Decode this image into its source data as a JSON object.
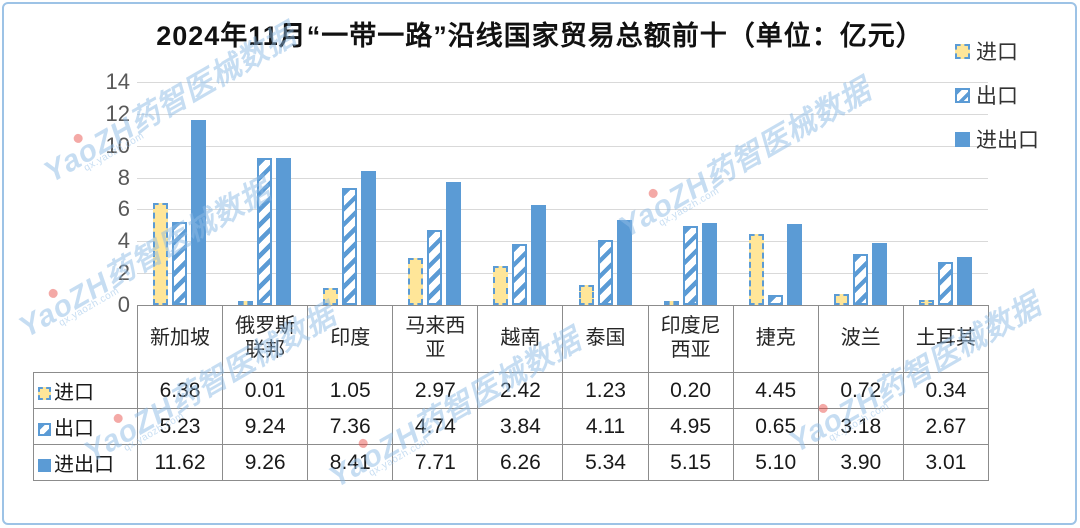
{
  "title": "2024年11月“一带一路”沿线国家贸易总额前十（单位：亿元）",
  "watermark": {
    "text": "YaoZH药智医械数据",
    "subtext": "qx.yaozh.com"
  },
  "legend": [
    {
      "id": "import",
      "label": "进口"
    },
    {
      "id": "export",
      "label": "出口"
    },
    {
      "id": "total",
      "label": "进出口"
    }
  ],
  "colors": {
    "accent_blue": "#5B9BD5",
    "import_yellow": "#FFE699",
    "grid": "#D9D9D9",
    "frame_border": "#9DC3E6",
    "axis_text": "#595959",
    "table_border": "#8C8C8C",
    "watermark_blue": "#8FBCE6",
    "watermark_dot_red": "#E8413C"
  },
  "chart_data": {
    "type": "bar",
    "title": "2024年11月“一带一路”沿线国家贸易总额前十（单位：亿元）",
    "unit": "亿元",
    "categories": [
      "新加坡",
      "俄罗斯联邦",
      "印度",
      "马来西亚",
      "越南",
      "泰国",
      "印度尼西亚",
      "捷克",
      "波兰",
      "土耳其"
    ],
    "series": [
      {
        "name": "进口",
        "values": [
          6.38,
          0.01,
          1.05,
          2.97,
          2.42,
          1.23,
          0.2,
          4.45,
          0.72,
          0.34
        ]
      },
      {
        "name": "出口",
        "values": [
          5.23,
          9.24,
          7.36,
          4.74,
          3.84,
          4.11,
          4.95,
          0.65,
          3.18,
          2.67
        ]
      },
      {
        "name": "进出口",
        "values": [
          11.62,
          9.26,
          8.41,
          7.71,
          6.26,
          5.34,
          5.15,
          5.1,
          3.9,
          3.01
        ]
      }
    ],
    "xlabel": "",
    "ylabel": "",
    "ylim": [
      0,
      14
    ],
    "yticks": [
      0,
      2,
      4,
      6,
      8,
      10,
      12,
      14
    ],
    "grid": true,
    "legend_position": "right-top",
    "data_table": true
  },
  "table": {
    "rows": [
      {
        "key": "import",
        "label": "进口",
        "values": [
          "6.38",
          "0.01",
          "1.05",
          "2.97",
          "2.42",
          "1.23",
          "0.20",
          "4.45",
          "0.72",
          "0.34"
        ]
      },
      {
        "key": "export",
        "label": "出口",
        "values": [
          "5.23",
          "9.24",
          "7.36",
          "4.74",
          "3.84",
          "4.11",
          "4.95",
          "0.65",
          "3.18",
          "2.67"
        ]
      },
      {
        "key": "total",
        "label": "进出口",
        "values": [
          "11.62",
          "9.26",
          "8.41",
          "7.71",
          "6.26",
          "5.34",
          "5.15",
          "5.10",
          "3.90",
          "3.01"
        ]
      }
    ]
  }
}
